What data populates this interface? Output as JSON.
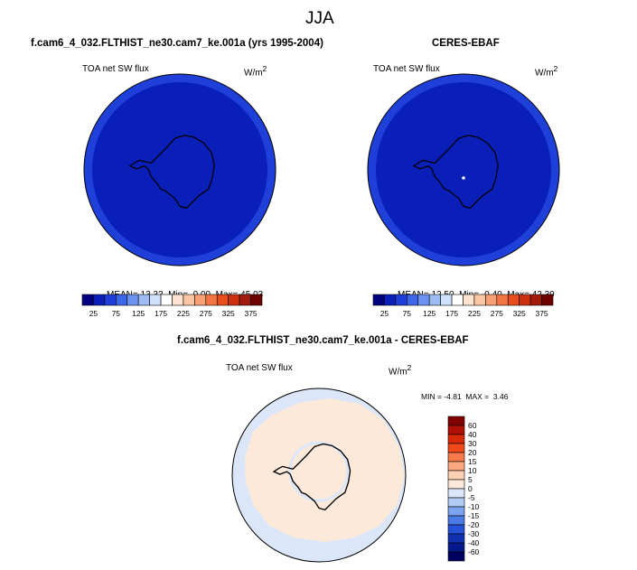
{
  "figure": {
    "season_title": "JJA"
  },
  "panels": {
    "model": {
      "title": "f.cam6_4_032.FLTHIST_ne30.cam7_ke.001a (yrs 1995-2004)",
      "variable": "TOA net SW flux",
      "units_base": "W/m",
      "units_exp": "2",
      "stats": {
        "mean_label": "MEAN=",
        "mean": "13.32",
        "min_label": "Min=",
        "min": "0.00",
        "max_label": "Max=",
        "max": "45.03"
      }
    },
    "obs": {
      "title": "CERES-EBAF",
      "variable": "TOA net SW flux",
      "units_base": "W/m",
      "units_exp": "2",
      "stats": {
        "mean_label": "MEAN=",
        "mean": "12.50",
        "min_label": "Min=",
        "min": "-0.40",
        "max_label": "Max=",
        "max": "42.39"
      }
    },
    "diff": {
      "title": "f.cam6_4_032.FLTHIST_ne30.cam7_ke.001a - CERES-EBAF",
      "variable": "TOA net SW flux",
      "units_base": "W/m",
      "units_exp": "2",
      "stats": {
        "min_label": "MIN =",
        "min": "-4.81",
        "max_label": "MAX =",
        "max": "3.46"
      }
    }
  },
  "colorbars": {
    "abs": {
      "labels": [
        "25",
        "75",
        "125",
        "175",
        "225",
        "275",
        "325",
        "375"
      ],
      "colors": [
        "#000080",
        "#0a1fb8",
        "#1e3fd8",
        "#3c67e8",
        "#6b92f0",
        "#9dbcf4",
        "#cfe0fa",
        "#ffffff",
        "#fde3cf",
        "#fbc6a4",
        "#f7a073",
        "#f27644",
        "#e84e1c",
        "#cc300f",
        "#a11a0a",
        "#6e0000"
      ]
    },
    "diff": {
      "labels": [
        "60",
        "40",
        "30",
        "20",
        "15",
        "10",
        "5",
        "0",
        "-5",
        "-10",
        "-15",
        "-20",
        "-30",
        "-40",
        "-60"
      ],
      "colors": [
        "#800000",
        "#b01005",
        "#d82a08",
        "#f04a1a",
        "#f87a4a",
        "#fba880",
        "#fdcfb3",
        "#fde9da",
        "#dbe7f8",
        "#b2cbf4",
        "#7da4ee",
        "#4b7ae4",
        "#2552d6",
        "#1030b0",
        "#06198c",
        "#000060"
      ]
    }
  },
  "map_colors": {
    "ocean_abs": "#0a1fb8",
    "edge_abs": "#1e3fd8",
    "diff_land": "#fde9da",
    "diff_ocean": "#dbe7f8"
  }
}
